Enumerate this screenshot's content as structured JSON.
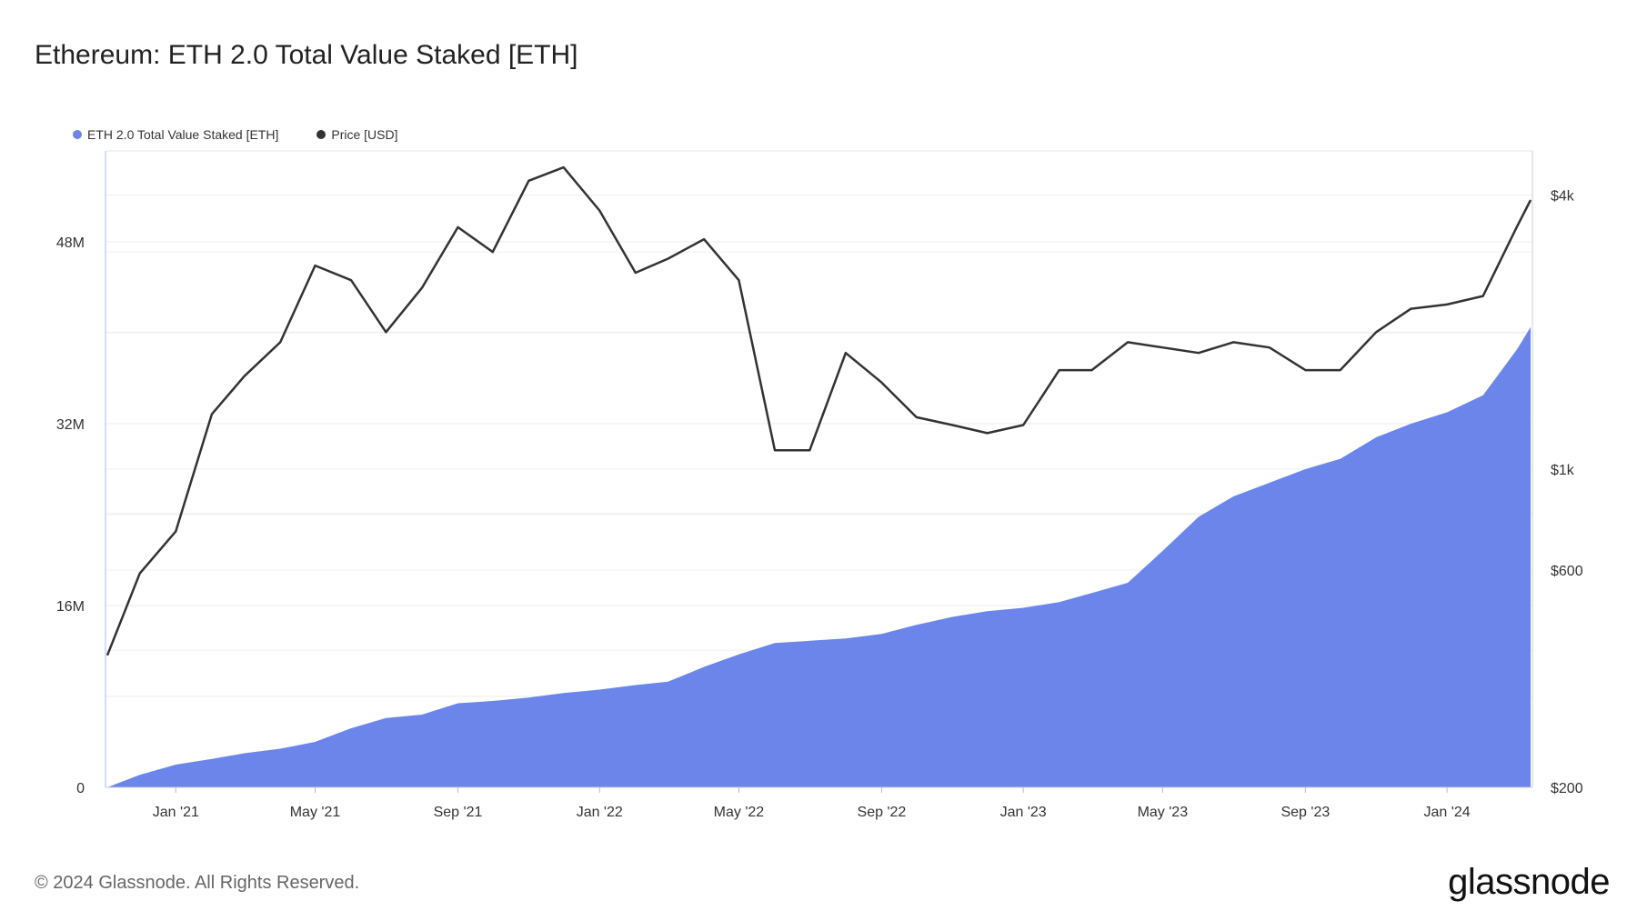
{
  "title": "Ethereum: ETH 2.0 Total Value Staked [ETH]",
  "legend": [
    {
      "label": "ETH 2.0 Total Value Staked [ETH]",
      "color": "#6b85eb"
    },
    {
      "label": "Price [USD]",
      "color": "#333333"
    }
  ],
  "footer": "© 2024 Glassnode. All Rights Reserved.",
  "brand": "glassnode",
  "chart_data": {
    "type": "area",
    "x_ticks": [
      "Jan '21",
      "May '21",
      "Sep '21",
      "Jan '22",
      "May '22",
      "Sep '22",
      "Jan '23",
      "May '23",
      "Sep '23",
      "Jan '24"
    ],
    "left_axis": {
      "ticks": [
        "0",
        "16M",
        "32M",
        "48M"
      ],
      "ylim": [
        0,
        56000000
      ]
    },
    "right_axis": {
      "ticks": [
        "$200",
        "$600",
        "$1k",
        "$4k"
      ],
      "scale": "log",
      "ylim": [
        200,
        5000
      ]
    },
    "x": [
      "2020-11-03",
      "2020-12-01",
      "2021-01-01",
      "2021-02-01",
      "2021-03-01",
      "2021-04-01",
      "2021-05-01",
      "2021-06-01",
      "2021-07-01",
      "2021-08-01",
      "2021-09-01",
      "2021-10-01",
      "2021-11-01",
      "2021-12-01",
      "2022-01-01",
      "2022-02-01",
      "2022-03-01",
      "2022-04-01",
      "2022-05-01",
      "2022-06-01",
      "2022-07-01",
      "2022-08-01",
      "2022-09-01",
      "2022-10-01",
      "2022-11-01",
      "2022-12-01",
      "2023-01-01",
      "2023-02-01",
      "2023-03-01",
      "2023-04-01",
      "2023-05-01",
      "2023-06-01",
      "2023-07-01",
      "2023-08-01",
      "2023-09-01",
      "2023-10-01",
      "2023-11-01",
      "2023-12-01",
      "2024-01-01",
      "2024-02-01",
      "2024-03-01",
      "2024-03-13"
    ],
    "series": [
      {
        "name": "ETH 2.0 Total Value Staked [ETH]",
        "axis": "left",
        "values": [
          0,
          1100000,
          2000000,
          2500000,
          3000000,
          3400000,
          4000000,
          5200000,
          6100000,
          6400000,
          7400000,
          7600000,
          7900000,
          8300000,
          8600000,
          9000000,
          9300000,
          10600000,
          11700000,
          12700000,
          12900000,
          13100000,
          13500000,
          14300000,
          15000000,
          15500000,
          15800000,
          16300000,
          17100000,
          18000000,
          20800000,
          23800000,
          25600000,
          26800000,
          28000000,
          28900000,
          30800000,
          32000000,
          33000000,
          34500000,
          38500000,
          40500000
        ]
      },
      {
        "name": "Price [USD]",
        "axis": "right",
        "values": [
          390,
          590,
          730,
          1320,
          1600,
          1900,
          2800,
          2600,
          2000,
          2500,
          3400,
          3000,
          4300,
          4600,
          3700,
          2700,
          2900,
          3200,
          2600,
          1100,
          1100,
          1800,
          1550,
          1300,
          1250,
          1200,
          1250,
          1650,
          1650,
          1900,
          1850,
          1800,
          1900,
          1850,
          1650,
          1650,
          2000,
          2250,
          2300,
          2400,
          3400,
          3900
        ]
      }
    ],
    "grid": true
  }
}
